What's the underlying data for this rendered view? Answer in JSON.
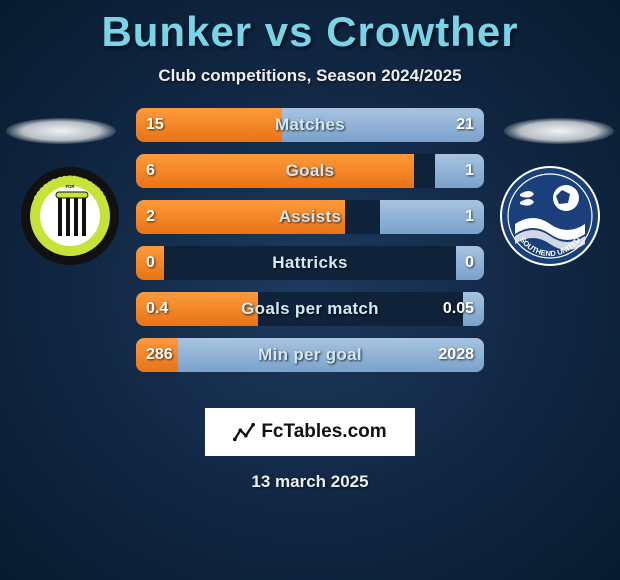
{
  "title": "Bunker vs Crowther",
  "subtitle": "Club competitions, Season 2024/2025",
  "date": "13 march 2025",
  "logo_text_a": "Fc",
  "logo_text_b": "Tables",
  "logo_text_c": ".com",
  "colors": {
    "title": "#7ad4e8",
    "bar_left": "#e87418",
    "bar_right": "#8eb4d9",
    "bar_bg": "#0e223a",
    "bar_text": "#d2e9f5"
  },
  "stats": [
    {
      "label": "Matches",
      "left_val": "15",
      "right_val": "21",
      "left_pct": 42,
      "right_pct": 58
    },
    {
      "label": "Goals",
      "left_val": "6",
      "right_val": "1",
      "left_pct": 80,
      "right_pct": 14
    },
    {
      "label": "Assists",
      "left_val": "2",
      "right_val": "1",
      "left_pct": 60,
      "right_pct": 30
    },
    {
      "label": "Hattricks",
      "left_val": "0",
      "right_val": "0",
      "left_pct": 8,
      "right_pct": 8
    },
    {
      "label": "Goals per match",
      "left_val": "0.4",
      "right_val": "0.05",
      "left_pct": 35,
      "right_pct": 6
    },
    {
      "label": "Min per goal",
      "left_val": "286",
      "right_val": "2028",
      "left_pct": 12,
      "right_pct": 88
    }
  ],
  "crest_left": {
    "outer": "#111111",
    "ring": "#c9e23a",
    "inner": "#ffffff",
    "stripes": "#111111",
    "text_top": "FOREST GREEN ROVERS",
    "text_bottom": "FOOTBALL CLUB",
    "year": "1889"
  },
  "crest_right": {
    "bg": "#1b3f7a",
    "border": "#ffffff",
    "ball": "#ffffff",
    "wave": "#ffffff",
    "text": "SOUTHEND UNITED"
  }
}
